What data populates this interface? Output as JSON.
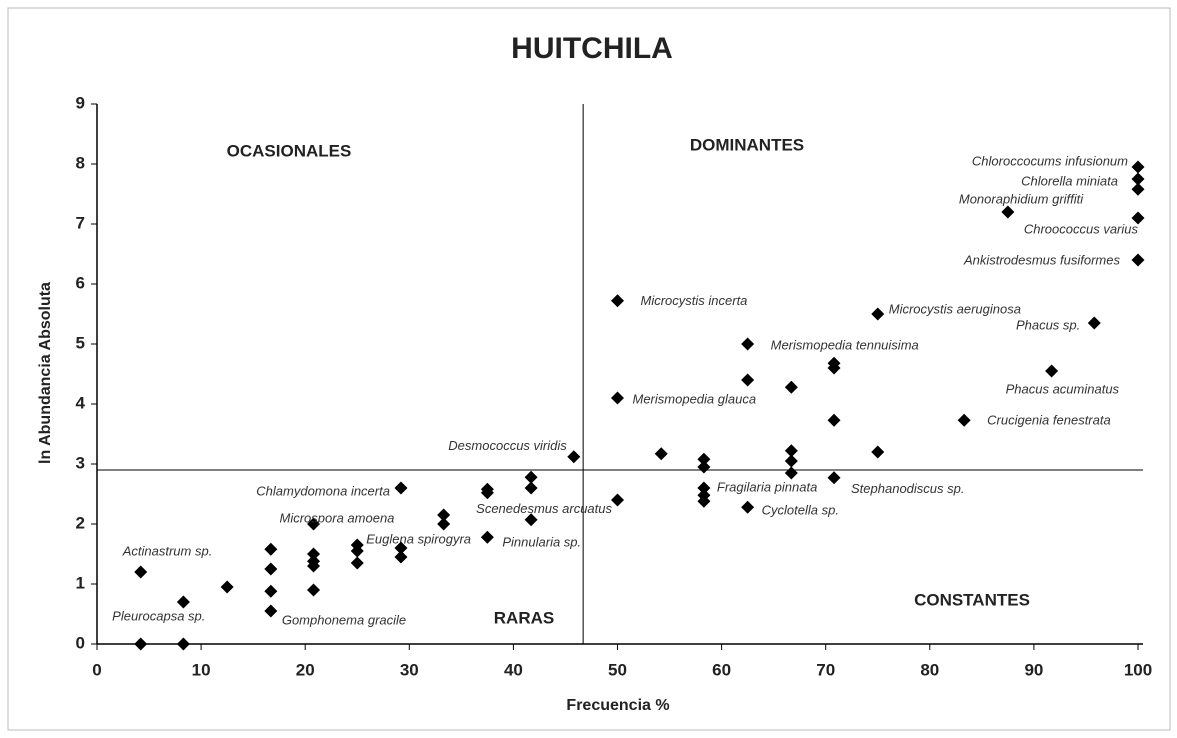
{
  "chart_data": {
    "type": "scatter",
    "title": "HUITCHILA",
    "x_label": "Frecuencia %",
    "y_label": "ln Abundancia Absoluta",
    "xlim": [
      0,
      100
    ],
    "ylim": [
      0,
      9
    ],
    "xticks": [
      0,
      10,
      20,
      30,
      40,
      50,
      60,
      70,
      80,
      90,
      100
    ],
    "yticks": [
      0,
      1,
      2,
      3,
      4,
      5,
      6,
      7,
      8,
      9
    ],
    "color": "#000000",
    "reference_lines": {
      "x": 46.7,
      "y": 2.9
    },
    "annotations": [
      "OCASIONALES",
      "DOMINANTES",
      "RARAS",
      "CONSTANTES"
    ],
    "x": [
      4.2,
      4.2,
      8.3,
      8.3,
      12.5,
      16.7,
      16.7,
      16.7,
      16.7,
      20.8,
      20.8,
      20.8,
      20.8,
      20.8,
      25,
      25,
      25,
      29.2,
      29.2,
      29.2,
      33.3,
      33.3,
      37.5,
      37.5,
      37.5,
      41.7,
      41.7,
      41.7,
      45.8,
      50,
      50,
      50,
      54.2,
      58.3,
      58.3,
      58.3,
      58.3,
      58.3,
      62.5,
      62.5,
      62.5,
      66.7,
      66.7,
      66.7,
      66.7,
      70.8,
      70.8,
      70.8,
      70.8,
      75,
      75,
      83.3,
      87.5,
      91.7,
      95.8,
      100,
      100,
      100,
      100,
      100
    ],
    "values": [
      1.2,
      0,
      0.7,
      0,
      0.95,
      1.58,
      1.25,
      0.88,
      0.55,
      2.0,
      1.5,
      1.38,
      1.3,
      0.9,
      1.65,
      1.55,
      1.35,
      2.6,
      1.6,
      1.45,
      2.15,
      2.0,
      2.58,
      2.52,
      1.78,
      2.78,
      2.6,
      2.07,
      3.12,
      5.72,
      4.1,
      2.4,
      3.17,
      3.08,
      2.95,
      2.6,
      2.48,
      2.38,
      5.0,
      4.4,
      2.28,
      4.28,
      3.22,
      3.05,
      2.85,
      4.68,
      4.6,
      3.73,
      2.77,
      5.5,
      3.2,
      3.73,
      7.2,
      4.55,
      5.35,
      7.95,
      7.75,
      7.58,
      7.1,
      6.4
    ],
    "point_labels": [
      "Actinastrum sp.",
      null,
      "Pleurocapsa sp.",
      null,
      null,
      null,
      null,
      null,
      "Gomphonema gracile",
      "Microspora amoena",
      null,
      null,
      null,
      null,
      "Euglena spirogyra",
      null,
      null,
      "Chlamydomona incerta",
      null,
      null,
      null,
      null,
      null,
      null,
      "Pinnularia sp.",
      null,
      null,
      "Scenedesmus arcuatus",
      "Desmococcus viridis",
      "Microcystis incerta",
      "Merismopedia glauca",
      null,
      null,
      null,
      null,
      "Fragilaria pinnata",
      null,
      null,
      "Merismopedia tennuisima",
      null,
      "Cyclotella sp.",
      null,
      null,
      null,
      null,
      null,
      null,
      null,
      "Stephanodiscus sp.",
      "Microcystis aeruginosa",
      null,
      "Crucigenia fenestrata",
      "Monoraphidium griffiti",
      "Phacus acuminatus",
      "Phacus sp.",
      "Chloroccocums infusionum",
      "Chlorella miniata",
      null,
      "Chroococcus varius",
      "Ankistrodesmus fusiformes"
    ]
  }
}
